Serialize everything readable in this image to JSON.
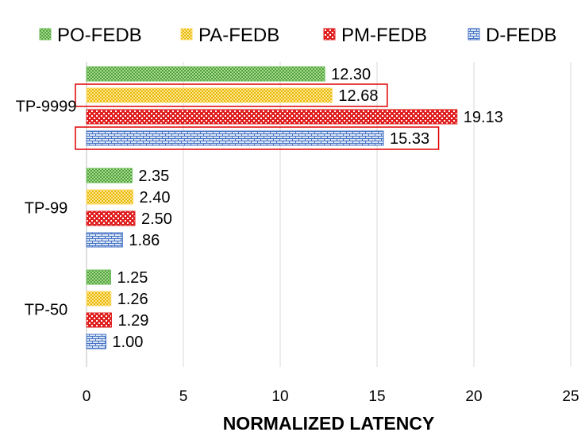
{
  "chart_data": {
    "type": "bar",
    "orientation": "horizontal",
    "title": "",
    "xlabel": "NORMALIZED LATENCY",
    "ylabel": "",
    "xlim": [
      0,
      25
    ],
    "x_ticks": [
      "0",
      "5",
      "10",
      "15",
      "20",
      "25"
    ],
    "grid": "vertical",
    "legend_position": "top",
    "categories": [
      "TP-9999",
      "TP-99",
      "TP-50"
    ],
    "series": [
      {
        "name": "PO-FEDB",
        "values": [
          12.3,
          2.35,
          1.25
        ],
        "labels": [
          "12.30",
          "2.35",
          "1.25"
        ],
        "color": "#6bbf59",
        "pattern": "green-check"
      },
      {
        "name": "PA-FEDB",
        "values": [
          12.68,
          2.4,
          1.26
        ],
        "labels": [
          "12.68",
          "2.40",
          "1.26"
        ],
        "color": "#ffd966",
        "pattern": "yellow-check"
      },
      {
        "name": "PM-FEDB",
        "values": [
          19.13,
          2.5,
          1.29
        ],
        "labels": [
          "19.13",
          "2.50",
          "1.29"
        ],
        "color": "#e02020",
        "pattern": "red-dots"
      },
      {
        "name": "D-FEDB",
        "values": [
          15.33,
          1.86,
          1.0
        ],
        "labels": [
          "15.33",
          "1.86",
          "1.00"
        ],
        "color": "#4472c4",
        "pattern": "blue-brick"
      }
    ],
    "highlights": [
      {
        "category": "TP-9999",
        "series": "PA-FEDB",
        "color": "#e00000"
      },
      {
        "category": "TP-9999",
        "series": "D-FEDB",
        "color": "#e00000"
      }
    ]
  }
}
